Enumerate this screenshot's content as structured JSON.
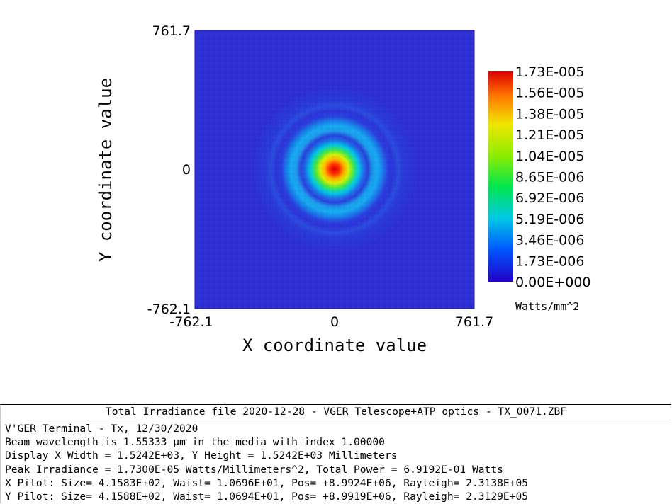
{
  "chart_data": {
    "type": "heatmap",
    "title": "",
    "xlabel": "X coordinate value",
    "ylabel": "Y coordinate value",
    "xlim": [
      -762.1,
      761.7
    ],
    "ylim": [
      -762.1,
      761.7
    ],
    "x_ticks": [
      "-762.1",
      "0",
      "761.7"
    ],
    "y_ticks": [
      "761.7",
      "0",
      "-762.1"
    ],
    "colorbar": {
      "min": 0.0,
      "max": 1.73e-05,
      "labels": [
        "1.73E-005",
        "1.56E-005",
        "1.38E-005",
        "1.21E-005",
        "1.04E-005",
        "8.65E-006",
        "6.92E-006",
        "5.19E-006",
        "3.46E-006",
        "1.73E-006",
        "0.00E+000"
      ],
      "units": "Watts/mm^2"
    },
    "description_values": {
      "peak": 1.73e-05,
      "center": [
        0,
        0
      ],
      "pattern": "airy-like"
    }
  },
  "info": {
    "title": "Total Irradiance file 2020-12-28 - VGER Telescope+ATP optics - TX_0071.ZBF",
    "lines": [
      "V'GER Terminal - Tx, 12/30/2020",
      "Beam wavelength is 1.55333 µm in the media with index 1.00000",
      "Display X Width = 1.5242E+03, Y Height = 1.5242E+03 Millimeters",
      "Peak Irradiance = 1.7300E-05 Watts/Millimeters^2, Total Power = 6.9192E-01 Watts",
      "X Pilot: Size= 4.1583E+02, Waist= 1.0696E+01, Pos= +8.9924E+06, Rayleigh= 2.3138E+05",
      "Y Pilot: Size= 4.1588E+02, Waist= 1.0694E+01, Pos= +8.9919E+06, Rayleigh= 2.3129E+05"
    ]
  }
}
